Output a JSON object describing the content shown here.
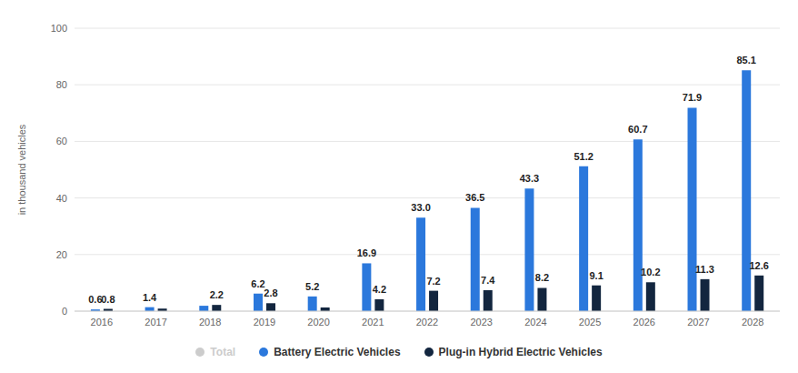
{
  "chart_data": {
    "type": "bar",
    "y_label": "in thousand vehicles",
    "categories": [
      "2016",
      "2017",
      "2018",
      "2019",
      "2020",
      "2021",
      "2022",
      "2023",
      "2024",
      "2025",
      "2026",
      "2027",
      "2028"
    ],
    "series": [
      {
        "name": "Total",
        "color": "#cccccc",
        "values": [
          null,
          null,
          null,
          null,
          null,
          null,
          null,
          null,
          null,
          null,
          null,
          null,
          null
        ]
      },
      {
        "name": "Battery Electric Vehicles",
        "color": "#2b78dc",
        "values": [
          0.6,
          1.4,
          1.9,
          6.2,
          5.2,
          16.9,
          33.0,
          36.5,
          43.3,
          51.2,
          60.7,
          71.9,
          85.1
        ],
        "value_labels": [
          "0.6",
          "1.4",
          null,
          "6.2",
          "5.2",
          "16.9",
          "33.0",
          "36.5",
          "43.3",
          "51.2",
          "60.7",
          "71.9",
          "85.1"
        ]
      },
      {
        "name": "Plug-in Hybrid Electric Vehicles",
        "color": "#13263f",
        "values": [
          0.8,
          0.9,
          2.2,
          2.8,
          1.3,
          4.2,
          7.2,
          7.4,
          8.2,
          9.1,
          10.2,
          11.3,
          12.6
        ],
        "value_labels": [
          "0.8",
          null,
          "2.2",
          "2.8",
          null,
          "4.2",
          "7.2",
          "7.4",
          "8.2",
          "9.1",
          "10.2",
          "11.3",
          "12.6"
        ]
      }
    ],
    "ylim": [
      0,
      100
    ],
    "yticks": [
      0,
      20,
      40,
      60,
      80,
      100
    ],
    "grid": true,
    "data_labels": true,
    "legend": "bottom"
  }
}
